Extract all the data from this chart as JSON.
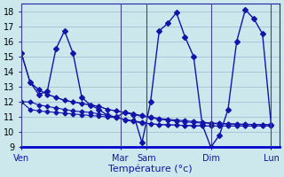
{
  "xlabel": "Température (°c)",
  "background_color": "#cce8ec",
  "grid_color": "#99bbcc",
  "line_color": "#1414aa",
  "xlim_min": 0,
  "xlim_max": 30,
  "ylim_min": 9,
  "ylim_max": 18.5,
  "yticks": [
    9,
    10,
    11,
    12,
    13,
    14,
    15,
    16,
    17,
    18
  ],
  "day_labels": [
    "Ven",
    "Mar",
    "Sam",
    "Dim",
    "Lun"
  ],
  "day_x": [
    0,
    11.5,
    14.5,
    22,
    29
  ],
  "main_line_x": [
    0,
    1,
    2,
    3,
    4,
    5,
    6,
    7,
    8,
    9,
    10,
    11,
    12,
    13,
    14,
    15,
    16,
    17,
    18,
    19,
    20,
    21,
    22,
    23,
    24,
    25,
    26,
    27,
    28,
    29
  ],
  "main_line_y": [
    15.2,
    13.3,
    12.5,
    12.7,
    15.5,
    16.7,
    15.2,
    12.3,
    11.8,
    11.5,
    11.1,
    11.0,
    11.3,
    11.2,
    9.3,
    12.0,
    16.7,
    17.2,
    17.9,
    16.3,
    15.0,
    10.5,
    9.0,
    9.8,
    11.5,
    16.0,
    18.1,
    17.5,
    16.5,
    10.5
  ],
  "trend1_x": [
    0,
    1,
    2,
    3,
    4,
    5,
    6,
    7,
    8,
    9,
    10,
    11,
    12,
    13,
    14,
    15,
    16,
    17,
    18,
    19,
    20,
    21,
    22,
    23,
    24,
    25,
    26,
    27,
    28,
    29
  ],
  "trend1_y": [
    15.2,
    13.3,
    12.8,
    12.5,
    12.3,
    12.1,
    12.0,
    11.9,
    11.8,
    11.7,
    11.5,
    11.4,
    11.3,
    11.2,
    11.1,
    11.0,
    10.9,
    10.85,
    10.8,
    10.75,
    10.7,
    10.65,
    10.6,
    10.58,
    10.56,
    10.54,
    10.52,
    10.51,
    10.5,
    10.5
  ],
  "trend2_x": [
    0,
    1,
    2,
    3,
    4,
    5,
    6,
    7,
    8,
    9,
    10,
    11,
    12,
    13,
    14,
    15,
    16,
    17,
    18,
    19,
    20,
    21,
    22,
    23,
    24,
    25,
    26,
    27,
    28,
    29
  ],
  "trend2_y": [
    12.0,
    12.0,
    11.8,
    11.7,
    11.6,
    11.5,
    11.4,
    11.35,
    11.3,
    11.2,
    11.1,
    11.0,
    10.8,
    10.7,
    10.6,
    10.55,
    10.5,
    10.48,
    10.46,
    10.44,
    10.42,
    10.41,
    10.4,
    10.4,
    10.4,
    10.4,
    10.4,
    10.4,
    10.4,
    10.4
  ],
  "trend3_x": [
    0,
    1,
    2,
    3,
    4,
    5,
    6,
    7,
    8,
    9,
    10,
    11,
    12,
    13,
    14,
    15,
    16,
    17,
    18,
    19,
    20,
    21,
    22,
    23,
    24,
    25,
    26,
    27,
    28,
    29
  ],
  "trend3_y": [
    12.0,
    11.5,
    11.4,
    11.35,
    11.3,
    11.25,
    11.2,
    11.15,
    11.1,
    11.05,
    11.0,
    10.95,
    10.85,
    10.75,
    10.65,
    10.55,
    10.5,
    10.48,
    10.46,
    10.44,
    10.42,
    10.41,
    10.4,
    10.4,
    10.4,
    10.4,
    10.4,
    10.4,
    10.4,
    10.4
  ],
  "trend4_x": [
    1,
    2,
    3,
    4,
    5,
    6,
    7,
    8,
    9,
    10,
    11,
    12,
    13,
    14,
    15,
    16,
    17,
    18,
    19,
    20,
    21,
    22,
    23,
    24,
    25,
    26,
    27,
    28,
    29
  ],
  "trend4_y": [
    13.3,
    12.8,
    12.5,
    12.3,
    12.1,
    12.0,
    11.9,
    11.8,
    11.7,
    11.5,
    11.4,
    11.3,
    11.15,
    11.05,
    10.95,
    10.85,
    10.78,
    10.73,
    10.68,
    10.63,
    10.6,
    10.57,
    10.55,
    10.53,
    10.51,
    10.5,
    10.5,
    10.5,
    10.5
  ]
}
